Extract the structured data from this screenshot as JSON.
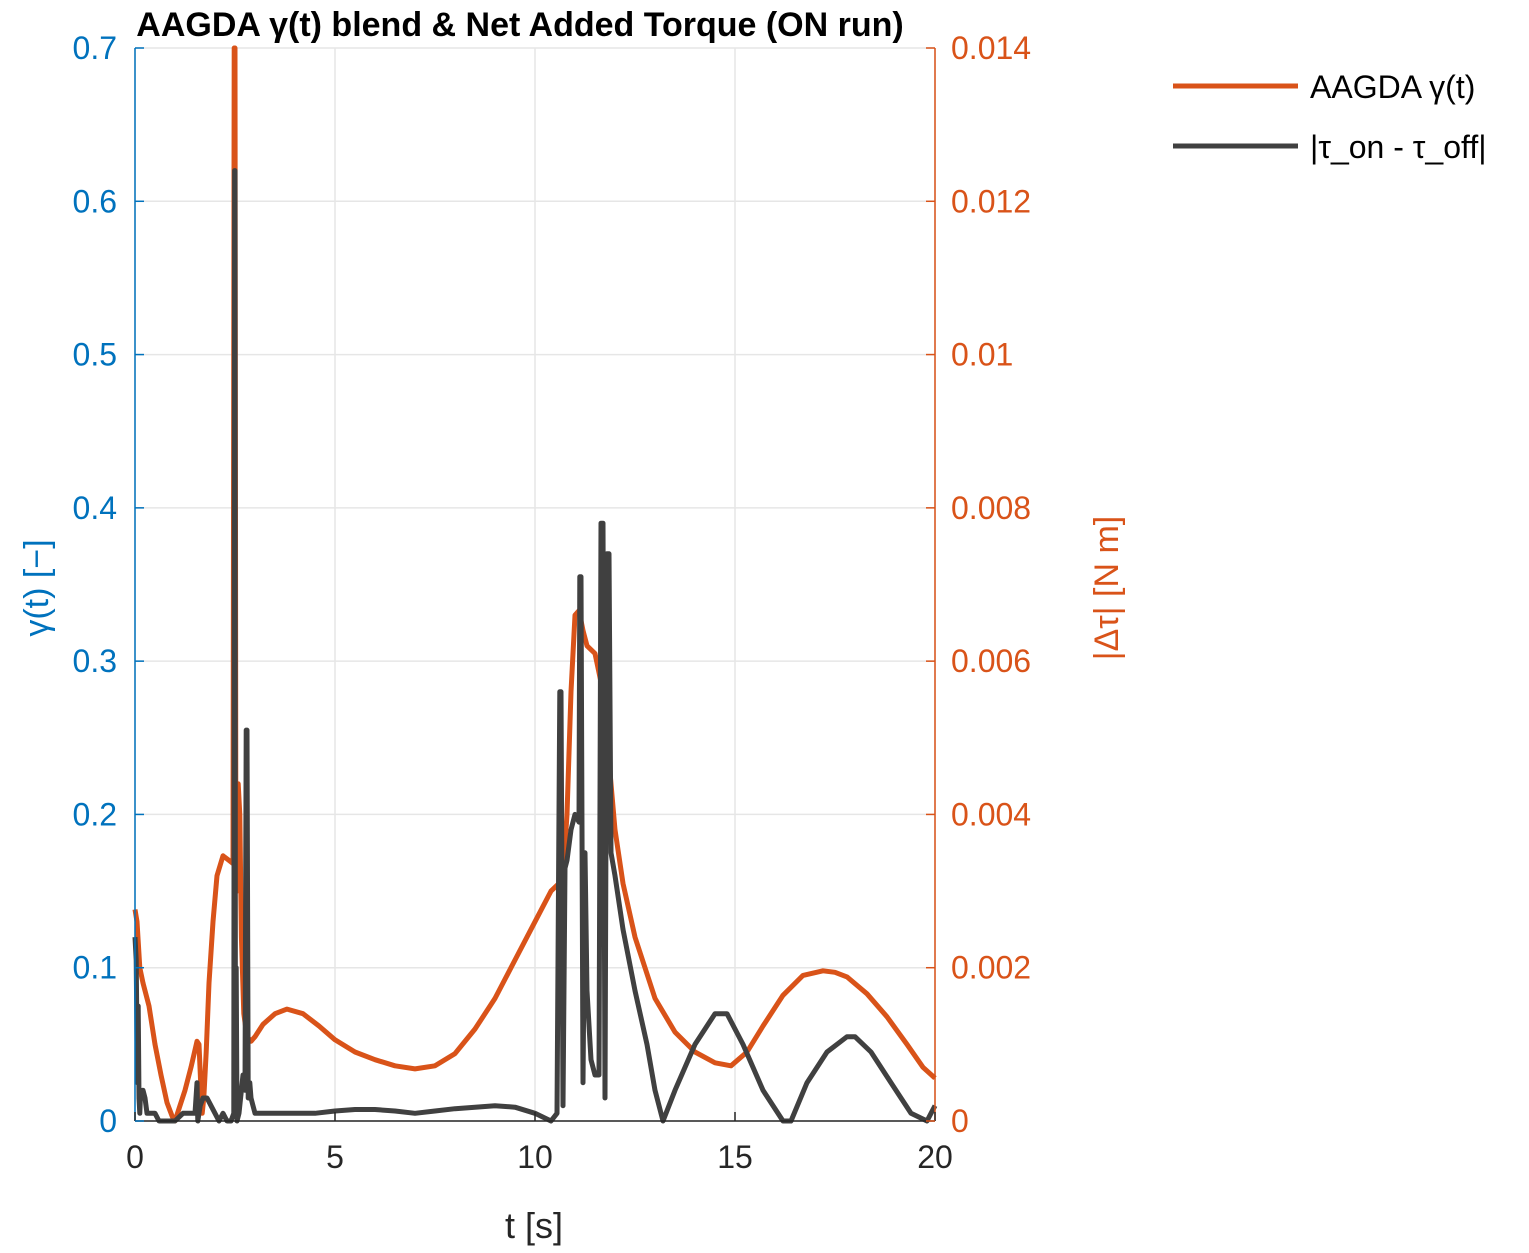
{
  "chart_data": {
    "type": "line",
    "title": "AAGDA γ(t) blend & Net Added Torque (ON run)",
    "xlabel": "t [s]",
    "ylabel_left": "γ(t) [−]",
    "ylabel_right": "|Δτ| [N m]",
    "xlim": [
      0,
      20
    ],
    "ylim_left": [
      0,
      0.7
    ],
    "ylim_right": [
      0,
      0.014
    ],
    "x_ticks": [
      "0",
      "5",
      "10",
      "15",
      "20"
    ],
    "y_ticks_left": [
      "0",
      "0.1",
      "0.2",
      "0.3",
      "0.4",
      "0.5",
      "0.6",
      "0.7"
    ],
    "y_ticks_right": [
      "0",
      "0.002",
      "0.004",
      "0.006",
      "0.008",
      "0.01",
      "0.012",
      "0.014"
    ],
    "grid": true,
    "legend_position": "outside-top-right",
    "colors": {
      "left_axis": "#0072BD",
      "right_axis": "#D95319",
      "series_gamma": "#D95319",
      "series_dtau": "#404040"
    },
    "series": [
      {
        "name": "AAGDA γ(t)",
        "axis": "left",
        "x": [
          0,
          0.05,
          0.12,
          0.2,
          0.35,
          0.5,
          0.65,
          0.8,
          0.93,
          1.0,
          1.1,
          1.25,
          1.4,
          1.55,
          1.6,
          1.65,
          1.68,
          1.72,
          1.78,
          1.85,
          1.95,
          2.05,
          2.2,
          2.35,
          2.45,
          2.48,
          2.5,
          2.52,
          2.55,
          2.58,
          2.62,
          2.66,
          2.72,
          2.8,
          2.9,
          3.0,
          3.2,
          3.5,
          3.8,
          4.2,
          4.6,
          5.0,
          5.5,
          6.0,
          6.5,
          7.0,
          7.5,
          8.0,
          8.5,
          9.0,
          9.5,
          10.0,
          10.4,
          10.6,
          10.7,
          10.8,
          10.9,
          11.0,
          11.1,
          11.2,
          11.3,
          11.5,
          11.7,
          11.8,
          11.9,
          12.0,
          12.2,
          12.5,
          13.0,
          13.5,
          14.0,
          14.5,
          14.9,
          15.3,
          15.7,
          16.2,
          16.7,
          17.2,
          17.5,
          17.8,
          18.3,
          18.8,
          19.3,
          19.7,
          20.0
        ],
        "y": [
          0.138,
          0.13,
          0.1,
          0.09,
          0.075,
          0.05,
          0.03,
          0.012,
          0.003,
          0.0,
          0.008,
          0.02,
          0.035,
          0.052,
          0.05,
          0.02,
          0.005,
          0.015,
          0.045,
          0.09,
          0.13,
          0.16,
          0.173,
          0.17,
          0.168,
          0.7,
          0.7,
          0.2,
          0.15,
          0.22,
          0.2,
          0.12,
          0.07,
          0.055,
          0.052,
          0.055,
          0.063,
          0.07,
          0.073,
          0.07,
          0.062,
          0.053,
          0.045,
          0.04,
          0.036,
          0.034,
          0.036,
          0.044,
          0.06,
          0.08,
          0.105,
          0.13,
          0.15,
          0.155,
          0.16,
          0.2,
          0.28,
          0.33,
          0.333,
          0.32,
          0.31,
          0.305,
          0.28,
          0.25,
          0.22,
          0.19,
          0.155,
          0.12,
          0.08,
          0.058,
          0.045,
          0.038,
          0.036,
          0.045,
          0.062,
          0.082,
          0.095,
          0.098,
          0.097,
          0.094,
          0.083,
          0.068,
          0.05,
          0.035,
          0.028
        ]
      },
      {
        "name": "|τ_on - τ_off|",
        "axis": "right",
        "x": [
          0,
          0.03,
          0.06,
          0.08,
          0.1,
          0.12,
          0.14,
          0.18,
          0.2,
          0.25,
          0.3,
          0.4,
          0.5,
          0.6,
          0.8,
          1.0,
          1.2,
          1.4,
          1.5,
          1.55,
          1.57,
          1.6,
          1.63,
          1.7,
          1.8,
          1.9,
          2.0,
          2.1,
          2.2,
          2.3,
          2.4,
          2.47,
          2.49,
          2.5,
          2.51,
          2.53,
          2.55,
          2.6,
          2.7,
          2.75,
          2.78,
          2.8,
          2.83,
          2.87,
          2.9,
          2.95,
          3.0,
          3.2,
          3.5,
          4.0,
          4.5,
          5.0,
          5.5,
          6.0,
          6.5,
          7.0,
          7.5,
          8.0,
          8.5,
          9.0,
          9.5,
          10.0,
          10.4,
          10.55,
          10.62,
          10.65,
          10.7,
          10.75,
          10.8,
          10.9,
          11.0,
          11.1,
          11.12,
          11.15,
          11.2,
          11.25,
          11.3,
          11.4,
          11.5,
          11.6,
          11.65,
          11.7,
          11.75,
          11.8,
          11.85,
          11.9,
          12.0,
          12.2,
          12.5,
          12.8,
          13.0,
          13.2,
          13.5,
          14.0,
          14.5,
          14.8,
          15.2,
          15.7,
          16.2,
          16.4,
          16.8,
          17.3,
          17.8,
          18.0,
          18.4,
          18.9,
          19.4,
          19.8,
          20.0
        ],
        "y": [
          0.0024,
          0.0021,
          0.0005,
          0.0015,
          0.0003,
          0.0001,
          0.0004,
          0.0003,
          0.0004,
          0.0003,
          0.0001,
          0.0001,
          0.0001,
          0.0,
          0.0,
          0.0,
          0.0001,
          0.0001,
          0.0001,
          0.0005,
          0.0,
          0.0001,
          0.0002,
          0.0003,
          0.0003,
          0.0002,
          0.0001,
          0.0,
          0.0001,
          0.0,
          0.0,
          0.0001,
          0.0124,
          0.0124,
          0.0001,
          0.002,
          0.0,
          0.0001,
          0.0006,
          0.0004,
          0.0051,
          0.0051,
          0.0003,
          0.0005,
          0.0003,
          0.0002,
          0.0001,
          0.0001,
          0.0001,
          0.0001,
          0.0001,
          0.00013,
          0.00015,
          0.00015,
          0.00013,
          0.0001,
          0.00013,
          0.00016,
          0.00018,
          0.0002,
          0.00018,
          0.0001,
          0.0,
          0.0001,
          0.0056,
          0.0056,
          0.0002,
          0.0033,
          0.0034,
          0.0038,
          0.004,
          0.0039,
          0.0071,
          0.0071,
          0.0005,
          0.0035,
          0.0017,
          0.0008,
          0.0006,
          0.0006,
          0.0078,
          0.0078,
          0.0003,
          0.0074,
          0.0074,
          0.0035,
          0.0032,
          0.0025,
          0.0017,
          0.001,
          0.0004,
          0.0,
          0.0004,
          0.001,
          0.0014,
          0.0014,
          0.001,
          0.0004,
          0.0,
          0.0,
          0.0005,
          0.0009,
          0.0011,
          0.0011,
          0.0009,
          0.0005,
          0.0001,
          0.0,
          0.0002
        ]
      }
    ]
  }
}
